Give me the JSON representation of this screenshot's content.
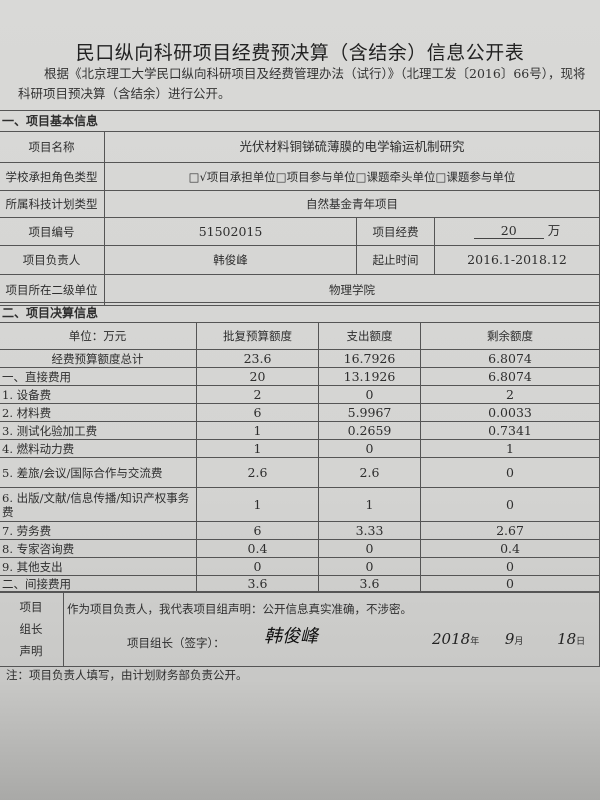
{
  "title": "民口纵向科研项目经费预决算（含结余）信息公开表",
  "intro": "根据《北京理工大学民口纵向科研项目及经费管理办法（试行）》（北理工发〔2016〕66号），现将科研项目预决算（含结余）进行公开。",
  "basic_info": {
    "section_title": "一、项目基本信息",
    "name_label": "项目名称",
    "name_value": "光伏材料铜锑硫薄膜的电学输运机制研究",
    "role_label": "学校承担角色类型",
    "role_value": "□√项目承担单位□项目参与单位□课题牵头单位□课题参与单位",
    "plan_label": "所属科技计划类型",
    "plan_value": "自然基金青年项目",
    "number_label": "项目编号",
    "number_value": "51502015",
    "funding_label": "项目经费",
    "funding_value": "20",
    "funding_unit": "万",
    "leader_label": "项目负责人",
    "leader_value": "韩俊峰",
    "period_label": "起止时间",
    "period_value": "2016.1-2018.12",
    "dept_label": "项目所在二级单位",
    "dept_value": "物理学院"
  },
  "budget": {
    "section_title": "二、项目决算信息",
    "headers": [
      "单位：万元",
      "批复预算额度",
      "支出额度",
      "剩余额度"
    ],
    "rows": [
      {
        "item": "经费预算额度总计",
        "approved": "23.6",
        "spent": "16.7926",
        "remaining": "6.8074"
      },
      {
        "item": "一、直接费用",
        "approved": "20",
        "spent": "13.1926",
        "remaining": "6.8074"
      },
      {
        "item": "1. 设备费",
        "approved": "2",
        "spent": "0",
        "remaining": "2"
      },
      {
        "item": "2. 材料费",
        "approved": "6",
        "spent": "5.9967",
        "remaining": "0.0033"
      },
      {
        "item": "3. 测试化验加工费",
        "approved": "1",
        "spent": "0.2659",
        "remaining": "0.7341"
      },
      {
        "item": "4. 燃料动力费",
        "approved": "1",
        "spent": "0",
        "remaining": "1"
      },
      {
        "item": "5. 差旅/会议/国际合作与交流费",
        "approved": "2.6",
        "spent": "2.6",
        "remaining": "0"
      },
      {
        "item": "6. 出版/文献/信息传播/知识产权事务费",
        "approved": "1",
        "spent": "1",
        "remaining": "0"
      },
      {
        "item": "7. 劳务费",
        "approved": "6",
        "spent": "3.33",
        "remaining": "2.67"
      },
      {
        "item": "8. 专家咨询费",
        "approved": "0.4",
        "spent": "0",
        "remaining": "0.4"
      },
      {
        "item": "9. 其他支出",
        "approved": "0",
        "spent": "0",
        "remaining": "0"
      },
      {
        "item": "二、间接费用",
        "approved": "3.6",
        "spent": "3.6",
        "remaining": "0"
      }
    ]
  },
  "statement": {
    "label": "项目组长声明",
    "text": "作为项目负责人，我代表项目组声明：公开信息真实准确，不涉密。",
    "sign_label": "项目组长（签字）：",
    "signature": "韩俊峰",
    "year": "2018",
    "year_unit": "年",
    "month": "9",
    "month_unit": "月",
    "day": "18",
    "day_unit": "日"
  },
  "note": "注：项目负责人填写，由计划财务部负责公开。"
}
